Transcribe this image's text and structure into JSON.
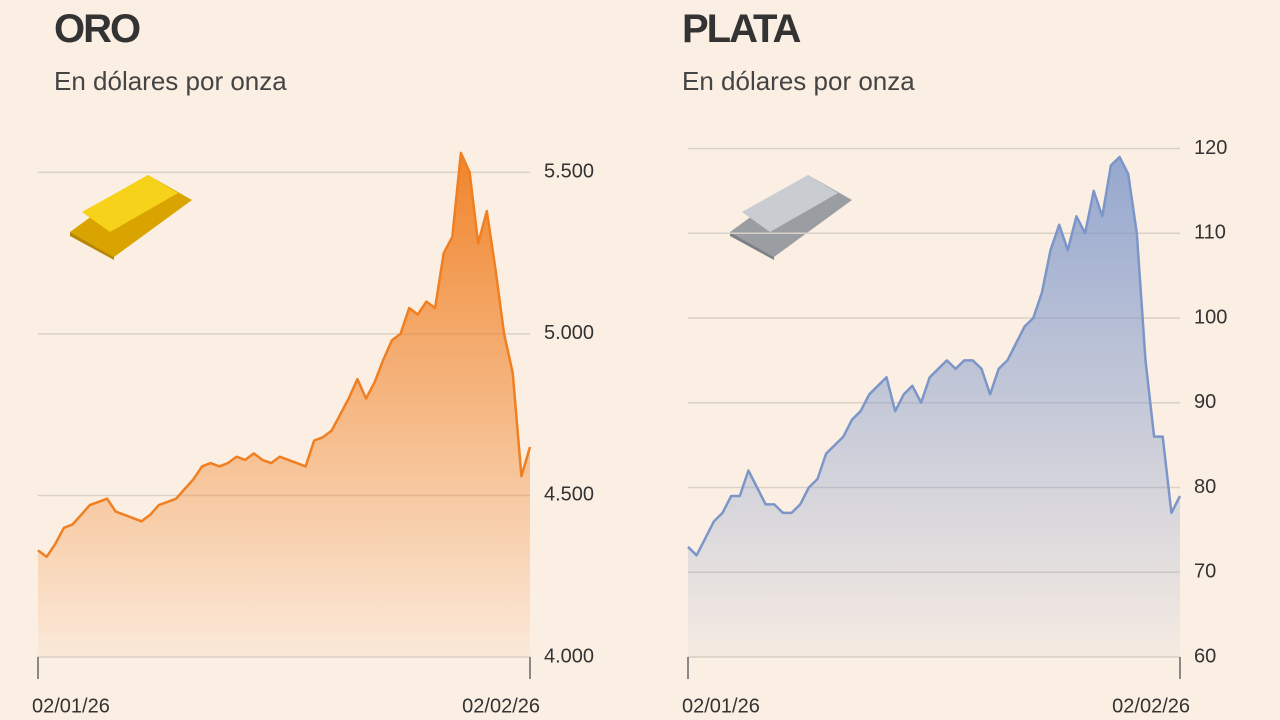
{
  "chart_data": [
    {
      "type": "area",
      "title": "ORO",
      "subtitle": "En dólares por onza",
      "color": "#f07f22",
      "categories": [
        "02/01/26",
        null,
        null,
        null,
        null,
        null,
        null,
        null,
        null,
        null,
        null,
        null,
        null,
        null,
        null,
        null,
        null,
        null,
        null,
        null,
        null,
        null,
        null,
        null,
        null,
        null,
        null,
        null,
        null,
        null,
        null,
        null,
        null,
        null,
        null,
        null,
        null,
        null,
        null,
        null,
        null,
        null,
        null,
        null,
        null,
        null,
        null,
        null,
        null,
        null,
        null,
        null,
        null,
        null,
        null,
        null,
        null,
        "02/02/26"
      ],
      "values": [
        4330,
        4310,
        4350,
        4400,
        4410,
        4440,
        4470,
        4480,
        4490,
        4450,
        4440,
        4430,
        4420,
        4440,
        4470,
        4480,
        4490,
        4520,
        4550,
        4590,
        4600,
        4590,
        4600,
        4620,
        4610,
        4630,
        4610,
        4600,
        4620,
        4610,
        4600,
        4590,
        4670,
        4680,
        4700,
        4750,
        4800,
        4860,
        4800,
        4850,
        4920,
        4980,
        5000,
        5080,
        5060,
        5100,
        5080,
        5250,
        5300,
        5560,
        5500,
        5280,
        5380,
        5200,
        5000,
        4880,
        4560,
        4650
      ],
      "ylim": [
        4000,
        5600
      ],
      "yticks": [
        {
          "value": 4000,
          "label": "4.000"
        },
        {
          "value": 4500,
          "label": "4.500"
        },
        {
          "value": 5000,
          "label": "5.000"
        },
        {
          "value": 5500,
          "label": "5.500"
        }
      ],
      "grid": true
    },
    {
      "type": "area",
      "title": "PLATA",
      "subtitle": "En dólares por onza",
      "color": "#7c96c9",
      "categories": [
        "02/01/26",
        null,
        null,
        null,
        null,
        null,
        null,
        null,
        null,
        null,
        null,
        null,
        null,
        null,
        null,
        null,
        null,
        null,
        null,
        null,
        null,
        null,
        null,
        null,
        null,
        null,
        null,
        null,
        null,
        null,
        null,
        null,
        null,
        null,
        null,
        null,
        null,
        null,
        null,
        null,
        null,
        null,
        null,
        null,
        null,
        null,
        null,
        null,
        null,
        null,
        null,
        null,
        null,
        null,
        null,
        null,
        null,
        "02/02/26"
      ],
      "values": [
        73,
        72,
        74,
        76,
        77,
        79,
        79,
        82,
        80,
        78,
        78,
        77,
        77,
        78,
        80,
        81,
        84,
        85,
        86,
        88,
        89,
        91,
        92,
        93,
        89,
        91,
        92,
        90,
        93,
        94,
        95,
        94,
        95,
        95,
        94,
        91,
        94,
        95,
        97,
        99,
        100,
        103,
        108,
        111,
        108,
        112,
        110,
        115,
        112,
        118,
        119,
        117,
        110,
        95,
        86,
        86,
        77,
        79
      ],
      "ylim": [
        60,
        121
      ],
      "yticks": [
        60,
        70,
        80,
        90,
        100,
        110,
        120
      ],
      "grid": true
    }
  ]
}
